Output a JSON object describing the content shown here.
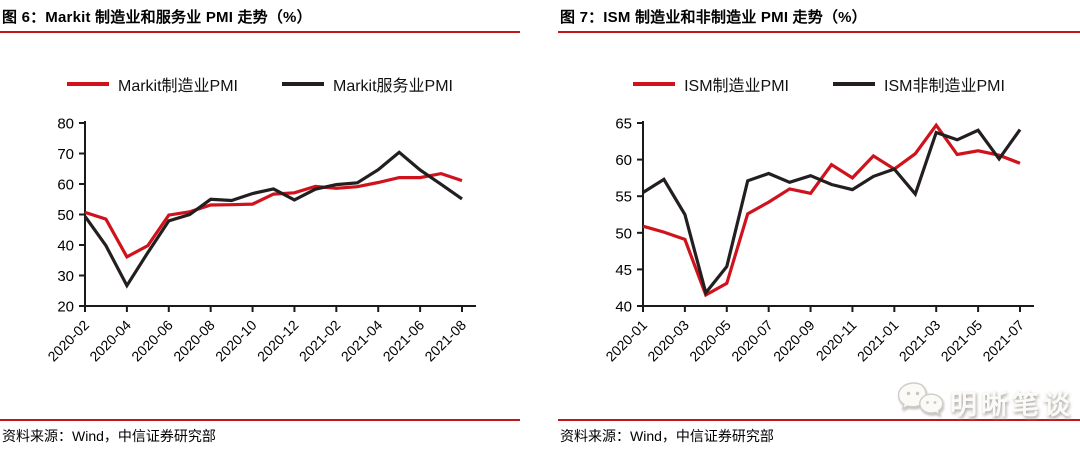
{
  "colors": {
    "series_red": "#d0121d",
    "series_black": "#231f20",
    "rule_red": "#c3151c",
    "axis_black": "#1a1a1a"
  },
  "figures": [
    {
      "title": "图 6：Markit 制造业和服务业 PMI 走势（%）",
      "source": "资料来源：Wind，中信证券研究部"
    },
    {
      "title": "图 7：ISM 制造业和非制造业 PMI 走势（%）",
      "source": "资料来源：Wind，中信证券研究部"
    }
  ],
  "watermark": {
    "icon": "wechat-icon",
    "label": "明晰笔谈"
  },
  "chart_data": [
    {
      "type": "line",
      "title": "Markit 制造业和服务业 PMI 走势（%）",
      "x": [
        "2020-02",
        "2020-03",
        "2020-04",
        "2020-05",
        "2020-06",
        "2020-07",
        "2020-08",
        "2020-09",
        "2020-10",
        "2020-11",
        "2020-12",
        "2021-01",
        "2021-02",
        "2021-03",
        "2021-04",
        "2021-05",
        "2021-06",
        "2021-07",
        "2021-08"
      ],
      "x_tick_step": 2,
      "series": [
        {
          "name": "Markit制造业PMI",
          "color": "#d0121d",
          "values": [
            50.7,
            48.5,
            36.1,
            39.8,
            49.8,
            50.9,
            53.1,
            53.2,
            53.4,
            56.7,
            57.1,
            59.2,
            58.6,
            59.1,
            60.5,
            62.1,
            62.1,
            63.4,
            61.1
          ]
        },
        {
          "name": "Markit服务业PMI",
          "color": "#231f20",
          "values": [
            49.4,
            39.8,
            26.7,
            37.5,
            47.9,
            50.0,
            55.0,
            54.6,
            56.9,
            58.4,
            54.8,
            58.3,
            59.8,
            60.4,
            64.7,
            70.4,
            64.6,
            59.9,
            55.1
          ]
        }
      ],
      "ylim": [
        20,
        80
      ],
      "y_ticks": [
        20,
        30,
        40,
        50,
        60,
        70,
        80
      ],
      "grid": false,
      "legend_position": "top"
    },
    {
      "type": "line",
      "title": "ISM 制造业和非制造业 PMI 走势（%）",
      "x": [
        "2020-01",
        "2020-02",
        "2020-03",
        "2020-04",
        "2020-05",
        "2020-06",
        "2020-07",
        "2020-08",
        "2020-09",
        "2020-10",
        "2020-11",
        "2020-12",
        "2021-01",
        "2021-02",
        "2021-03",
        "2021-04",
        "2021-05",
        "2021-06",
        "2021-07"
      ],
      "x_tick_step": 2,
      "series": [
        {
          "name": "ISM制造业PMI",
          "color": "#d0121d",
          "values": [
            50.9,
            50.1,
            49.1,
            41.5,
            43.1,
            52.6,
            54.2,
            56.0,
            55.4,
            59.3,
            57.5,
            60.5,
            58.7,
            60.8,
            64.7,
            60.7,
            61.2,
            60.6,
            59.5
          ]
        },
        {
          "name": "ISM非制造业PMI",
          "color": "#231f20",
          "values": [
            55.5,
            57.3,
            52.5,
            41.8,
            45.4,
            57.1,
            58.1,
            56.9,
            57.8,
            56.6,
            55.9,
            57.7,
            58.7,
            55.3,
            63.7,
            62.7,
            64.0,
            60.1,
            64.1
          ]
        }
      ],
      "ylim": [
        40,
        65
      ],
      "y_ticks": [
        40,
        45,
        50,
        55,
        60,
        65
      ],
      "grid": false,
      "legend_position": "top"
    }
  ]
}
